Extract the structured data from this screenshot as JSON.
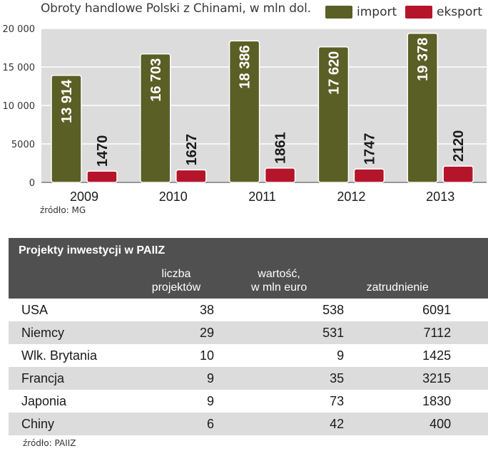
{
  "chart_data": {
    "type": "bar",
    "title": "Obroty handlowe Polski z Chinami, w mln dol.",
    "categories": [
      "2009",
      "2010",
      "2011",
      "2012",
      "2013"
    ],
    "series": [
      {
        "name": "import",
        "color": "#5a5f25",
        "values": [
          13914,
          16703,
          18386,
          17620,
          19378
        ],
        "labels": [
          "13 914",
          "16 703",
          "18 386",
          "17 620",
          "19 378"
        ]
      },
      {
        "name": "eksport",
        "color": "#b5152b",
        "values": [
          1470,
          1627,
          1861,
          1747,
          2120
        ],
        "labels": [
          "1470",
          "1627",
          "1861",
          "1747",
          "2120"
        ]
      }
    ],
    "yticks": [
      {
        "value": 0,
        "label": "0"
      },
      {
        "value": 5000,
        "label": "5000"
      },
      {
        "value": 10000,
        "label": "10 000"
      },
      {
        "value": 15000,
        "label": "15 000"
      },
      {
        "value": 20000,
        "label": "20 000"
      }
    ],
    "ylim": [
      0,
      20000
    ],
    "xlabel": "",
    "ylabel": "",
    "legend_position": "top-right",
    "source": "źródło: MG"
  },
  "table": {
    "title": "Projekty inwestycji w PAIIZ",
    "columns": [
      "",
      "liczba projektów",
      "wartość, w mln euro",
      "zatrudnienie"
    ],
    "column_lines": [
      [
        "liczba",
        "projektów"
      ],
      [
        "wartość,",
        "w mln euro"
      ],
      [
        "zatrudnienie"
      ]
    ],
    "rows": [
      [
        "USA",
        "38",
        "538",
        "6091"
      ],
      [
        "Niemcy",
        "29",
        "531",
        "7112"
      ],
      [
        "Wlk. Brytania",
        "10",
        "9",
        "1425"
      ],
      [
        "Francja",
        "9",
        "35",
        "3215"
      ],
      [
        "Japonia",
        "9",
        "73",
        "1830"
      ],
      [
        "Chiny",
        "6",
        "42",
        "400"
      ]
    ],
    "source": "źródło: PAIIZ"
  }
}
